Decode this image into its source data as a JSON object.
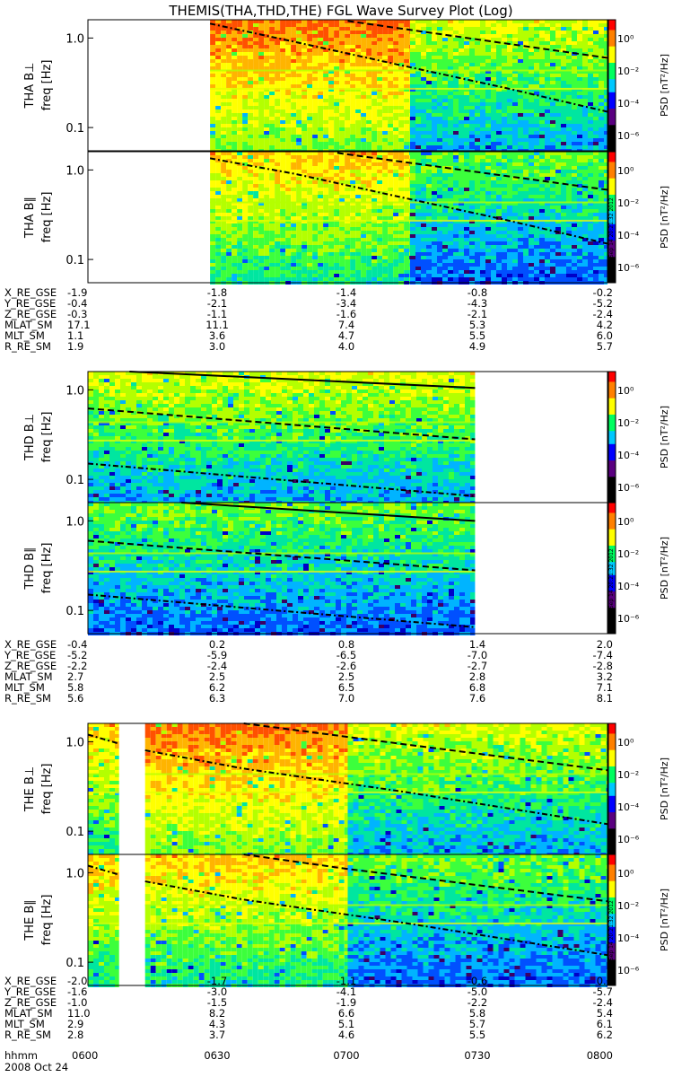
{
  "title": "THEMIS(THA,THD,THE) FGL Wave Survey Plot (Log)",
  "date_label": "2008 Oct 24",
  "stamp": "RH Sep 14 20:21:32 2012",
  "time_axis": {
    "label": "hhmm",
    "ticks": [
      "0600",
      "0630",
      "0700",
      "0730",
      "0800"
    ]
  },
  "colorbar": {
    "label": "PSD [nT²/Hz]",
    "tick_labels": [
      "10⁰",
      "10⁻²",
      "10⁻⁴",
      "10⁻⁶"
    ],
    "exponents": [
      0,
      -2,
      -4,
      -6
    ],
    "colors": [
      "#ffffff",
      "#000000",
      "#5a0080",
      "#0000ff",
      "#00c8ff",
      "#00ff60",
      "#ffff00",
      "#ff8000",
      "#ff0000"
    ]
  },
  "chart_data": [
    {
      "type": "heatmap",
      "ylabel": "THA B⊥",
      "ylabel2": "freq [Hz]",
      "yscale": "log",
      "ylim": [
        0.055,
        1.6
      ],
      "ytick_labels": [
        "1.0",
        "0.1"
      ],
      "ytick_values": [
        1.0,
        0.1
      ],
      "x": [
        "0600",
        "0800"
      ],
      "data_segments": [
        [
          0.235,
          0.62,
          "high"
        ],
        [
          0.62,
          1.0,
          "low"
        ]
      ],
      "lines": [
        {
          "style": "dashed",
          "points": [
            [
              0.5,
              1.55
            ],
            [
              1.0,
              0.6
            ]
          ]
        },
        {
          "style": "dashdot",
          "points": [
            [
              0.235,
              1.45
            ],
            [
              0.4,
              0.9
            ],
            [
              0.6,
              0.5
            ],
            [
              0.8,
              0.28
            ],
            [
              1.0,
              0.15
            ]
          ]
        }
      ]
    },
    {
      "type": "heatmap",
      "ylabel": "THA B∥",
      "ylabel2": "freq [Hz]",
      "yscale": "log",
      "ylim": [
        0.055,
        1.6
      ],
      "ytick_labels": [
        "1.0",
        "0.1"
      ],
      "ytick_values": [
        1.0,
        0.1
      ],
      "x": [
        "0600",
        "0800"
      ],
      "data_segments": [
        [
          0.235,
          0.62,
          "mid"
        ],
        [
          0.62,
          1.0,
          "vlow"
        ]
      ],
      "lines": [
        {
          "style": "dashed",
          "points": [
            [
              0.48,
              1.55
            ],
            [
              1.0,
              0.6
            ]
          ]
        },
        {
          "style": "dashdot",
          "points": [
            [
              0.235,
              1.35
            ],
            [
              0.4,
              0.9
            ],
            [
              0.6,
              0.5
            ],
            [
              0.8,
              0.28
            ],
            [
              1.0,
              0.15
            ]
          ]
        }
      ]
    },
    {
      "type": "heatmap",
      "ylabel": "THD B⊥",
      "ylabel2": "freq [Hz]",
      "yscale": "log",
      "ylim": [
        0.055,
        1.6
      ],
      "ytick_labels": [
        "1.0",
        "0.1"
      ],
      "ytick_values": [
        1.0,
        0.1
      ],
      "x": [
        "0600",
        "0800"
      ],
      "data_segments": [
        [
          0.0,
          0.745,
          "low"
        ]
      ],
      "lines": [
        {
          "style": "solid",
          "points": [
            [
              0.08,
              1.6
            ],
            [
              0.745,
              1.05
            ]
          ]
        },
        {
          "style": "dashed",
          "points": [
            [
              0.0,
              0.62
            ],
            [
              0.745,
              0.28
            ]
          ]
        },
        {
          "style": "dashdot",
          "points": [
            [
              0.0,
              0.15
            ],
            [
              0.745,
              0.065
            ]
          ]
        }
      ]
    },
    {
      "type": "heatmap",
      "ylabel": "THD B∥",
      "ylabel2": "freq [Hz]",
      "yscale": "log",
      "ylim": [
        0.055,
        1.6
      ],
      "ytick_labels": [
        "1.0",
        "0.1"
      ],
      "ytick_values": [
        1.0,
        0.1
      ],
      "x": [
        "0600",
        "0800"
      ],
      "data_segments": [
        [
          0.0,
          0.745,
          "vlow"
        ]
      ],
      "lines": [
        {
          "style": "solid",
          "points": [
            [
              0.18,
              1.6
            ],
            [
              0.745,
              1.0
            ]
          ]
        },
        {
          "style": "dashed",
          "points": [
            [
              0.0,
              0.6
            ],
            [
              0.745,
              0.28
            ]
          ]
        },
        {
          "style": "dashdot",
          "points": [
            [
              0.0,
              0.15
            ],
            [
              0.745,
              0.065
            ]
          ]
        }
      ]
    },
    {
      "type": "heatmap",
      "ylabel": "THE B⊥",
      "ylabel2": "freq [Hz]",
      "yscale": "log",
      "ylim": [
        0.055,
        1.6
      ],
      "ytick_labels": [
        "1.0",
        "0.1"
      ],
      "ytick_values": [
        1.0,
        0.1
      ],
      "x": [
        "0600",
        "0800"
      ],
      "data_segments": [
        [
          0.0,
          0.06,
          "mid"
        ],
        [
          0.11,
          0.5,
          "high"
        ],
        [
          0.5,
          1.0,
          "low"
        ]
      ],
      "lines": [
        {
          "style": "dashed",
          "points": [
            [
              0.3,
              1.6
            ],
            [
              0.6,
              0.95
            ],
            [
              1.0,
              0.48
            ]
          ]
        },
        {
          "style": "dashdot",
          "points": [
            [
              0.0,
              1.2
            ],
            [
              0.06,
              0.95
            ]
          ]
        },
        {
          "style": "dashdot",
          "points": [
            [
              0.11,
              0.8
            ],
            [
              0.3,
              0.5
            ],
            [
              0.6,
              0.28
            ],
            [
              1.0,
              0.12
            ]
          ]
        }
      ]
    },
    {
      "type": "heatmap",
      "ylabel": "THE B∥",
      "ylabel2": "freq [Hz]",
      "yscale": "log",
      "ylim": [
        0.055,
        1.6
      ],
      "ytick_labels": [
        "1.0",
        "0.1"
      ],
      "ytick_values": [
        1.0,
        0.1
      ],
      "x": [
        "0600",
        "0800"
      ],
      "data_segments": [
        [
          0.0,
          0.06,
          "mid"
        ],
        [
          0.11,
          0.5,
          "mid"
        ],
        [
          0.5,
          1.0,
          "vlow"
        ]
      ],
      "lines": [
        {
          "style": "dashed",
          "points": [
            [
              0.3,
              1.6
            ],
            [
              0.5,
              1.1
            ],
            [
              1.0,
              0.48
            ]
          ]
        },
        {
          "style": "dashdot",
          "points": [
            [
              0.0,
              1.2
            ],
            [
              0.06,
              0.95
            ]
          ]
        },
        {
          "style": "dashdot",
          "points": [
            [
              0.11,
              0.8
            ],
            [
              0.3,
              0.5
            ],
            [
              0.6,
              0.28
            ],
            [
              1.0,
              0.12
            ]
          ]
        }
      ]
    }
  ],
  "ephemeris": [
    {
      "rows": [
        {
          "label": "X_RE_GSE",
          "values": [
            "-1.9",
            "-1.8",
            "-1.4",
            "-0.8",
            "-0.2"
          ]
        },
        {
          "label": "Y_RE_GSE",
          "values": [
            "-0.4",
            "-2.1",
            "-3.4",
            "-4.3",
            "-5.2"
          ]
        },
        {
          "label": "Z_RE_GSE",
          "values": [
            "-0.3",
            "-1.1",
            "-1.6",
            "-2.1",
            "-2.4"
          ]
        },
        {
          "label": "MLAT_SM",
          "values": [
            "17.1",
            "11.1",
            "7.4",
            "5.3",
            "4.2"
          ]
        },
        {
          "label": "MLT_SM",
          "values": [
            "1.1",
            "3.6",
            "4.7",
            "5.5",
            "6.0"
          ]
        },
        {
          "label": "R_RE_SM",
          "values": [
            "1.9",
            "3.0",
            "4.0",
            "4.9",
            "5.7"
          ]
        }
      ]
    },
    {
      "rows": [
        {
          "label": "X_RE_GSE",
          "values": [
            "-0.4",
            "0.2",
            "0.8",
            "1.4",
            "2.0"
          ]
        },
        {
          "label": "Y_RE_GSE",
          "values": [
            "-5.2",
            "-5.9",
            "-6.5",
            "-7.0",
            "-7.4"
          ]
        },
        {
          "label": "Z_RE_GSE",
          "values": [
            "-2.2",
            "-2.4",
            "-2.6",
            "-2.7",
            "-2.8"
          ]
        },
        {
          "label": "MLAT_SM",
          "values": [
            "2.7",
            "2.5",
            "2.5",
            "2.8",
            "3.2"
          ]
        },
        {
          "label": "MLT_SM",
          "values": [
            "5.8",
            "6.2",
            "6.5",
            "6.8",
            "7.1"
          ]
        },
        {
          "label": "R_RE_SM",
          "values": [
            "5.6",
            "6.3",
            "7.0",
            "7.6",
            "8.1"
          ]
        }
      ]
    },
    {
      "rows": [
        {
          "label": "X_RE_GSE",
          "values": [
            "-2.0",
            "-1.7",
            "-1.1",
            "-0.6",
            "0.0"
          ]
        },
        {
          "label": "Y_RE_GSE",
          "values": [
            "-1.6",
            "-3.0",
            "-4.1",
            "-5.0",
            "-5.7"
          ]
        },
        {
          "label": "Z_RE_GSE",
          "values": [
            "-1.0",
            "-1.5",
            "-1.9",
            "-2.2",
            "-2.4"
          ]
        },
        {
          "label": "MLAT_SM",
          "values": [
            "11.0",
            "8.2",
            "6.6",
            "5.8",
            "5.4"
          ]
        },
        {
          "label": "MLT_SM",
          "values": [
            "2.9",
            "4.3",
            "5.1",
            "5.7",
            "6.1"
          ]
        },
        {
          "label": "R_RE_SM",
          "values": [
            "2.8",
            "3.7",
            "4.6",
            "5.5",
            "6.2"
          ]
        }
      ]
    }
  ]
}
